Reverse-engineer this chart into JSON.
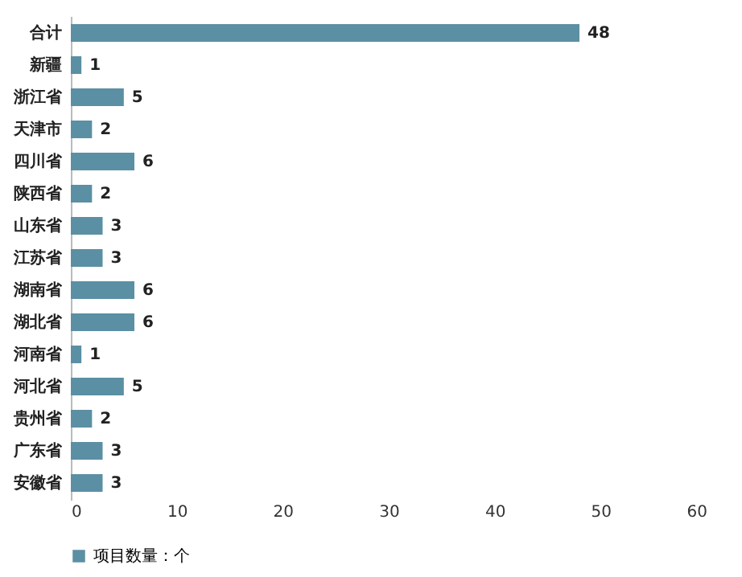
{
  "chart_data": {
    "type": "bar",
    "orientation": "horizontal",
    "categories": [
      "合计",
      "新疆",
      "浙江省",
      "天津市",
      "四川省",
      "陕西省",
      "山东省",
      "江苏省",
      "湖南省",
      "湖北省",
      "河南省",
      "河北省",
      "贵州省",
      "广东省",
      "安徽省"
    ],
    "series": [
      {
        "name": "项目数量：个",
        "color": "#5b8fa3",
        "values": [
          48,
          1,
          5,
          2,
          6,
          2,
          3,
          3,
          6,
          6,
          1,
          5,
          2,
          3,
          3
        ]
      }
    ],
    "xlim": [
      0,
      60
    ],
    "xticks": [
      0,
      10,
      20,
      30,
      40,
      50,
      60
    ],
    "data_labels": true,
    "legend": "bottom",
    "grid": false
  }
}
